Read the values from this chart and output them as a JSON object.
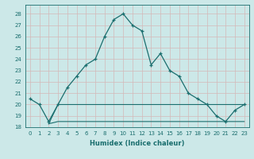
{
  "xlabel": "Humidex (Indice chaleur)",
  "background_color": "#cce8e8",
  "grid_color": "#b0d4d4",
  "line_color": "#1a6e6e",
  "xlim": [
    -0.5,
    23.5
  ],
  "ylim": [
    18.0,
    28.8
  ],
  "yticks": [
    18,
    19,
    20,
    21,
    22,
    23,
    24,
    25,
    26,
    27,
    28
  ],
  "xticks": [
    0,
    1,
    2,
    3,
    4,
    5,
    6,
    7,
    8,
    9,
    10,
    11,
    12,
    13,
    14,
    15,
    16,
    17,
    18,
    19,
    20,
    21,
    22,
    23
  ],
  "main_x": [
    0,
    1,
    2,
    3,
    4,
    5,
    6,
    7,
    8,
    9,
    10,
    11,
    12,
    13,
    14,
    15,
    16,
    17,
    18,
    19,
    20,
    21,
    22,
    23
  ],
  "main_y": [
    20.5,
    20.0,
    18.5,
    20.0,
    21.5,
    22.5,
    23.5,
    24.0,
    26.0,
    27.5,
    28.0,
    27.0,
    26.5,
    23.5,
    24.5,
    23.0,
    22.5,
    21.0,
    20.5,
    20.0,
    19.0,
    18.5,
    19.5,
    20.0
  ],
  "flat1_x": [
    2,
    3,
    4,
    5,
    6,
    7,
    8,
    9,
    10,
    11,
    12,
    13,
    14,
    15,
    16,
    17,
    18,
    19,
    20,
    21,
    22,
    23
  ],
  "flat1_y": [
    18.3,
    20.0,
    20.0,
    20.0,
    20.0,
    20.0,
    20.0,
    20.0,
    20.0,
    20.0,
    20.0,
    20.0,
    20.0,
    20.0,
    20.0,
    20.0,
    20.0,
    20.0,
    20.0,
    20.0,
    20.0,
    20.0
  ],
  "flat2_x": [
    2,
    3,
    4,
    5,
    6,
    7,
    8,
    9,
    10,
    11,
    12,
    13,
    14,
    15,
    16,
    17,
    18,
    19,
    20,
    21,
    22,
    23
  ],
  "flat2_y": [
    18.3,
    18.5,
    18.5,
    18.5,
    18.5,
    18.5,
    18.5,
    18.5,
    18.5,
    18.5,
    18.5,
    18.5,
    18.5,
    18.5,
    18.5,
    18.5,
    18.5,
    18.5,
    18.5,
    18.5,
    18.5,
    18.5
  ],
  "font_color": "#1a6e6e"
}
